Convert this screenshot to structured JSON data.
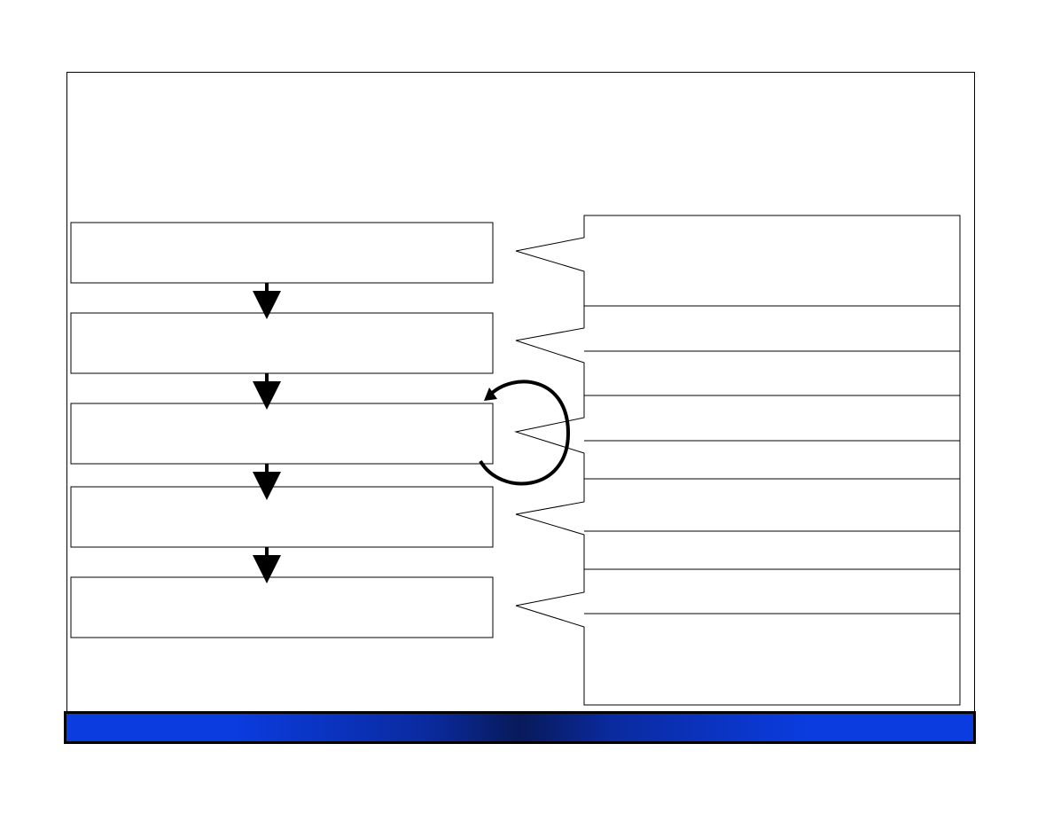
{
  "slide": {
    "title": "",
    "colors": {
      "outline": "#000000",
      "background": "#ffffff",
      "footer_edge": "#0a3ce0",
      "footer_center": "#081a5a"
    }
  },
  "process_steps": [
    {
      "label": ""
    },
    {
      "label": ""
    },
    {
      "label": ""
    },
    {
      "label": ""
    },
    {
      "label": ""
    }
  ],
  "callouts": [
    {
      "text": ""
    },
    {
      "text": ""
    },
    {
      "text": ""
    },
    {
      "text": ""
    },
    {
      "text": ""
    }
  ]
}
